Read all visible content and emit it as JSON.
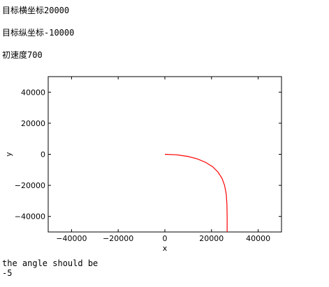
{
  "output": {
    "line1": "目标横坐标20000",
    "line2": "目标纵坐标-10000",
    "line3": "初速度700",
    "result_label": "the angle should be",
    "result_value": "-5"
  },
  "chart_data": {
    "type": "line",
    "title": "",
    "xlabel": "x",
    "ylabel": "y",
    "xlim": [
      -50000,
      50000
    ],
    "ylim": [
      -50000,
      50000
    ],
    "xticks": [
      -40000,
      -20000,
      0,
      20000,
      40000
    ],
    "yticks": [
      40000,
      20000,
      0,
      -20000,
      -40000
    ],
    "xtick_labels": [
      "−40000",
      "−20000",
      "0",
      "20000",
      "40000"
    ],
    "ytick_labels": [
      "40000",
      "20000",
      "0",
      "−20000",
      "−40000"
    ],
    "grid": false,
    "series": [
      {
        "color": "#ff0000",
        "x": [
          0,
          5000,
          10000,
          14000,
          17500,
          20500,
          22800,
          24500,
          25600,
          26300,
          26600,
          26700,
          26700
        ],
        "y": [
          0,
          -300,
          -1400,
          -3000,
          -5200,
          -8000,
          -11500,
          -15500,
          -20000,
          -25500,
          -32000,
          -40000,
          -50000
        ]
      }
    ]
  }
}
